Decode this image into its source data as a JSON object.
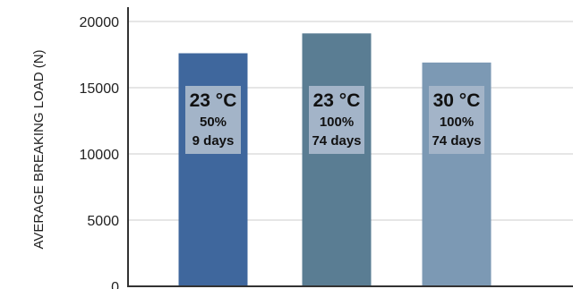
{
  "chart_data": {
    "type": "bar",
    "ylabel": "AVERAGE BREAKING  LOAD (N)",
    "ylim": [
      0,
      20000
    ],
    "yticks": [
      "0",
      "5000",
      "10000",
      "15000",
      "20000"
    ],
    "grid": true,
    "bars": [
      {
        "value": 17600,
        "color": "#3f679d",
        "label": {
          "temp": "23 °C",
          "humidity": "50%",
          "duration": "9 days"
        }
      },
      {
        "value": 19100,
        "color": "#5a7d93",
        "label": {
          "temp": "23 °C",
          "humidity": "100%",
          "duration": "74 days"
        }
      },
      {
        "value": 16900,
        "color": "#7c99b4",
        "label": {
          "temp": "30 °C",
          "humidity": "100%",
          "duration": "74 days"
        }
      }
    ],
    "label_box_color": "#a3b4c8",
    "axis_color": "#333333",
    "grid_color": "#cccccc"
  }
}
